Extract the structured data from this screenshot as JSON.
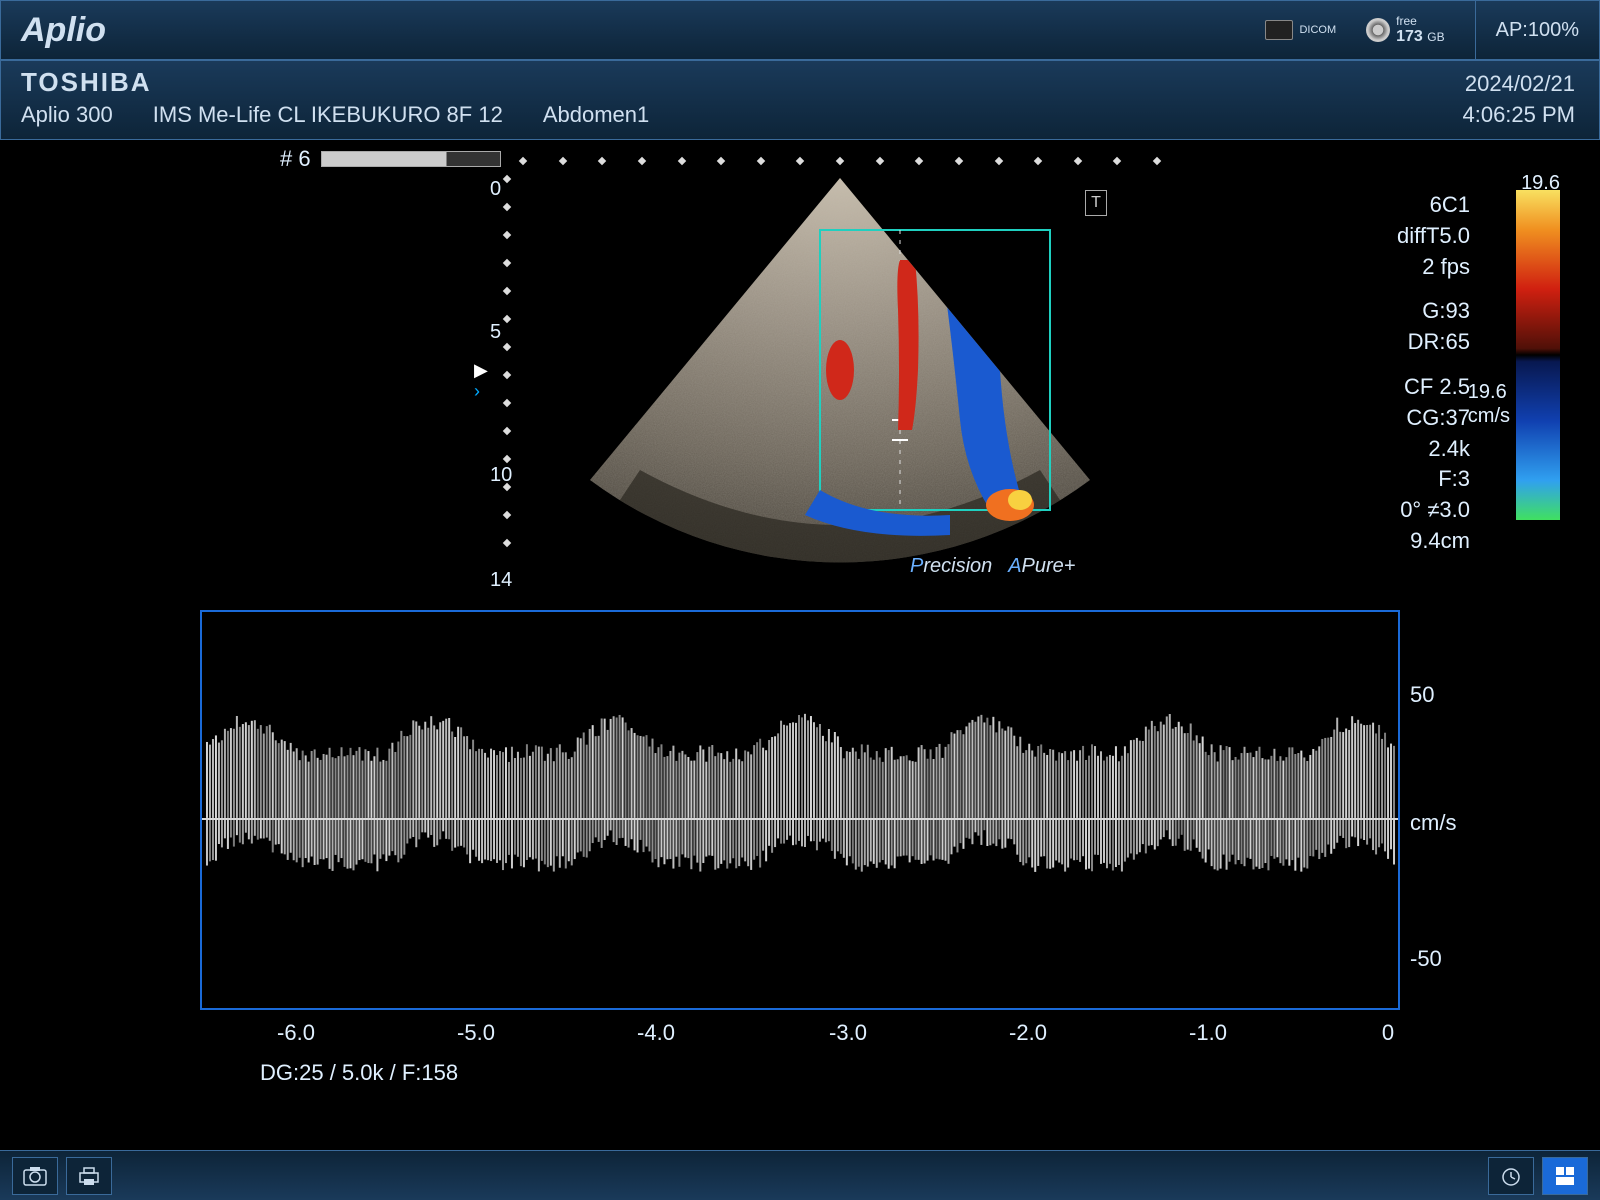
{
  "titlebar": {
    "brand": "Aplio",
    "dicom_label": "DICOM",
    "disk_free_label": "free",
    "disk_free_value": "173",
    "disk_free_unit": "GB",
    "ap_label": "AP:100%"
  },
  "infobar": {
    "vendor": "TOSHIBA",
    "model": "Aplio 300",
    "institution": "IMS Me-Life CL IKEBUKURO 8F 12",
    "preset": "Abdomen1",
    "date": "2024/02/21",
    "time": "4:06:25 PM",
    "clip_index": "# 6"
  },
  "scan": {
    "background_color": "#000000",
    "depth_ticks": [
      {
        "label": "0",
        "y_pct": 2
      },
      {
        "label": "5",
        "y_pct": 36
      },
      {
        "label": "10",
        "y_pct": 70
      },
      {
        "label": "14",
        "y_pct": 95
      }
    ],
    "t_marker": "T",
    "sector": {
      "tissue_fill": "#8b8278",
      "tissue_highlight": "#bdb3a6",
      "color_box_stroke": "#1fd0c0",
      "flow_red": "#d0281a",
      "flow_blue": "#1a5ad0",
      "flow_orange": "#f07020"
    },
    "precision": {
      "p": "P",
      "recision": "recision",
      "a": "A",
      "pure": "Pure",
      "plus": "+"
    }
  },
  "params": {
    "transducer": "6C1",
    "diff": "diffT5.0",
    "fps": "2 fps",
    "gain": "G:93",
    "dr": "DR:65",
    "cf": "CF 2.5",
    "cg": "CG:37",
    "prf": "2.4k",
    "filter": "F:3",
    "angle": "0° ≠3.0",
    "depth": "9.4cm"
  },
  "colorbar": {
    "top_value": "19.6",
    "mid_value": "19.6",
    "unit": "cm/s",
    "gradient_stops": [
      {
        "c": "#f8e060",
        "p": 0
      },
      {
        "c": "#f09020",
        "p": 12
      },
      {
        "c": "#d02010",
        "p": 30
      },
      {
        "c": "#501008",
        "p": 48
      },
      {
        "c": "#000000",
        "p": 50
      },
      {
        "c": "#081850",
        "p": 52
      },
      {
        "c": "#1040b0",
        "p": 70
      },
      {
        "c": "#30a0f0",
        "p": 88
      },
      {
        "c": "#40e060",
        "p": 100
      }
    ]
  },
  "spectral": {
    "border_color": "#1a6ad8",
    "baseline_color": "#d8d8d8",
    "waveform_color": "#d8d8d8",
    "y_ticks": [
      {
        "label": "50",
        "y_pct": 18
      },
      {
        "label": "cm/s",
        "y_pct": 52
      },
      {
        "label": "-50",
        "y_pct": 86
      }
    ],
    "x_ticks": [
      {
        "label": "-6.0",
        "x_pct": 8
      },
      {
        "label": "-5.0",
        "x_pct": 23
      },
      {
        "label": "-4.0",
        "x_pct": 38
      },
      {
        "label": "-3.0",
        "x_pct": 54
      },
      {
        "label": "-2.0",
        "x_pct": 69
      },
      {
        "label": "-1.0",
        "x_pct": 84
      },
      {
        "label": "0",
        "x_pct": 99
      }
    ],
    "footer": "DG:25  / 5.0k   / F:158"
  },
  "bottombar": {
    "camera_label": "camera-icon",
    "print_label": "printer-icon",
    "clock_label": "clock-icon",
    "grid_label": "layout-icon"
  }
}
